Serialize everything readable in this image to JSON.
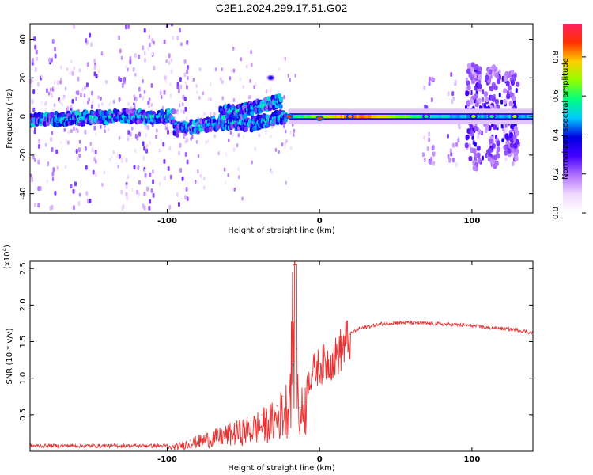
{
  "title": "C2E1.2024.299.17.51.G02",
  "colors": {
    "snr_line": "#e83030",
    "colormap": [
      "#ffffff",
      "#f0d8ff",
      "#b070ff",
      "#4400ff",
      "#0000e0",
      "#00c8ff",
      "#00ff80",
      "#90ff00",
      "#ffd000",
      "#ff3000",
      "#ff2060"
    ]
  },
  "chart_data": [
    {
      "type": "heatmap",
      "title": "C2E1.2024.299.17.51.G02",
      "xlabel": "Height of straight line (km)",
      "ylabel": "Frequency (Hz)",
      "xlim": [
        -190,
        140
      ],
      "ylim": [
        -50,
        48
      ],
      "x_ticks": [
        -100,
        0,
        100
      ],
      "x_tick_labels": [
        "-100",
        "0",
        "100"
      ],
      "y_ticks": [
        -40,
        -20,
        0,
        20,
        40
      ],
      "y_tick_labels": [
        "-40",
        "-20",
        "0",
        "20",
        "40"
      ],
      "colorbar": {
        "label": "Normalized spectral amplitude",
        "range": [
          0.0,
          0.97
        ],
        "ticks": [
          0.0,
          0.2,
          0.4,
          0.6,
          0.8
        ],
        "tick_labels": [
          "0.0",
          "0.2",
          "0.4",
          "0.6",
          "0.8"
        ]
      },
      "line_segments": [
        {
          "x": [
            -190,
            -130,
            -95
          ],
          "y": [
            -2,
            0,
            0
          ]
        },
        {
          "x": [
            -95,
            -80,
            -60,
            -45,
            -30,
            -22
          ],
          "y": [
            -7,
            -5,
            -3,
            -4,
            -1,
            0
          ]
        },
        {
          "x": [
            -65,
            -50,
            -35,
            -25
          ],
          "y": [
            2,
            3,
            6,
            8
          ]
        },
        {
          "x": [
            -20,
            140
          ],
          "y": [
            0,
            0
          ]
        }
      ],
      "hotspots": [
        {
          "x": -32,
          "y": 20,
          "v": 0.4
        },
        {
          "x": -20,
          "y": 0,
          "v": 0.9
        },
        {
          "x": 0,
          "y": -1,
          "v": 0.9
        },
        {
          "x": 20,
          "y": 0,
          "v": 0.85
        },
        {
          "x": 70,
          "y": 0,
          "v": 0.6
        },
        {
          "x": 101,
          "y": 0,
          "v": 0.7
        },
        {
          "x": 113,
          "y": 0,
          "v": 0.6
        },
        {
          "x": 128,
          "y": 0,
          "v": 0.7
        }
      ]
    },
    {
      "type": "line",
      "xlabel": "Height of straight line (km)",
      "ylabel": "SNR (10 * v/v)",
      "y_scale_label": "(x10",
      "y_scale_exponent": "4",
      "xlim": [
        -190,
        140
      ],
      "ylim": [
        0,
        2.6
      ],
      "x_ticks": [
        -100,
        0,
        100
      ],
      "x_tick_labels": [
        "-100",
        "0",
        "100"
      ],
      "y_ticks": [
        0.5,
        1.0,
        1.5,
        2.0,
        2.5
      ],
      "y_tick_labels": [
        "0.5",
        "1.0",
        "1.5",
        "2.0",
        "2.5"
      ],
      "series": [
        {
          "x": [
            -190,
            -160,
            -130,
            -110,
            -95,
            -85,
            -75,
            -65,
            -55,
            -45,
            -38,
            -32,
            -28,
            -24,
            -20,
            -17,
            -15,
            -13,
            -10,
            -5,
            0,
            5,
            10,
            15,
            20,
            25,
            30,
            40,
            50,
            60,
            70,
            80,
            90,
            100,
            110,
            120,
            130,
            140
          ],
          "y": [
            0.05,
            0.06,
            0.05,
            0.05,
            0.08,
            0.15,
            0.22,
            0.28,
            0.35,
            0.42,
            0.5,
            0.55,
            0.62,
            0.75,
            0.9,
            2.55,
            1.4,
            0.6,
            0.9,
            1.1,
            1.2,
            1.25,
            1.3,
            1.45,
            1.6,
            1.67,
            1.7,
            1.74,
            1.76,
            1.76,
            1.75,
            1.74,
            1.73,
            1.72,
            1.69,
            1.68,
            1.66,
            1.62
          ]
        }
      ]
    }
  ]
}
